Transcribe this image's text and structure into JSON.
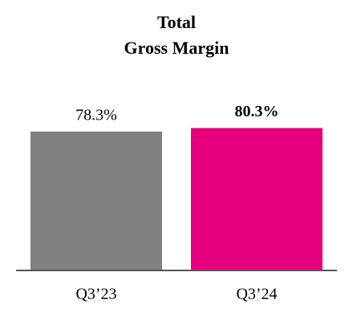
{
  "chart_data": {
    "type": "bar",
    "title": [
      "Total",
      "Gross Margin"
    ],
    "categories": [
      "Q3’23",
      "Q3’24"
    ],
    "values": [
      78.3,
      80.3
    ],
    "value_labels": [
      "78.3%",
      "80.3%"
    ],
    "colors": [
      "#808080",
      "#e6007e"
    ],
    "bold_labels": [
      false,
      true
    ],
    "ylim": [
      0,
      100
    ]
  }
}
